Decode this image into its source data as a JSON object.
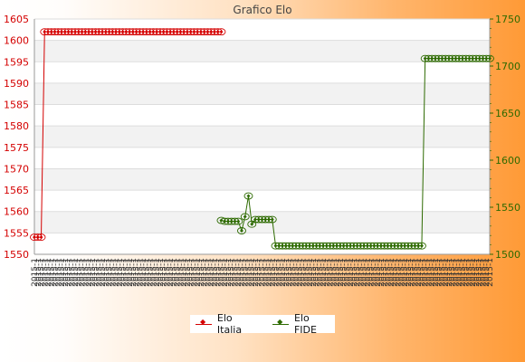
{
  "chart_data": {
    "type": "line",
    "title": "Grafico Elo",
    "left_axis": {
      "ticks": [
        1550,
        1555,
        1560,
        1565,
        1570,
        1575,
        1580,
        1585,
        1590,
        1595,
        1600,
        1605
      ],
      "ylim": [
        1550,
        1605
      ],
      "color": "#d40000"
    },
    "right_axis": {
      "ticks": [
        1500,
        1550,
        1600,
        1650,
        1700,
        1750
      ],
      "ylim": [
        1500,
        1750
      ],
      "color": "#2d6a00"
    },
    "x_label_text": "2015-1",
    "n_points": 80,
    "grid": true,
    "legend_position": "bottom",
    "series": [
      {
        "name": "Elo Italia",
        "axis": "left",
        "color": "#d40000",
        "points": [
          [
            0,
            1554
          ],
          [
            1,
            1554
          ],
          [
            2,
            1554
          ],
          [
            3,
            1602
          ],
          [
            4,
            1602
          ],
          [
            5,
            1602
          ],
          [
            6,
            1602
          ],
          [
            7,
            1602
          ],
          [
            8,
            1602
          ],
          [
            9,
            1602
          ],
          [
            10,
            1602
          ],
          [
            11,
            1602
          ],
          [
            12,
            1602
          ],
          [
            13,
            1602
          ],
          [
            14,
            1602
          ],
          [
            15,
            1602
          ],
          [
            16,
            1602
          ],
          [
            17,
            1602
          ],
          [
            18,
            1602
          ],
          [
            19,
            1602
          ],
          [
            20,
            1602
          ],
          [
            21,
            1602
          ],
          [
            22,
            1602
          ],
          [
            23,
            1602
          ],
          [
            24,
            1602
          ],
          [
            25,
            1602
          ],
          [
            26,
            1602
          ],
          [
            27,
            1602
          ],
          [
            28,
            1602
          ],
          [
            29,
            1602
          ],
          [
            30,
            1602
          ],
          [
            31,
            1602
          ],
          [
            32,
            1602
          ],
          [
            33,
            1602
          ],
          [
            34,
            1602
          ],
          [
            35,
            1602
          ],
          [
            36,
            1602
          ],
          [
            37,
            1602
          ],
          [
            38,
            1602
          ],
          [
            39,
            1602
          ],
          [
            40,
            1602
          ],
          [
            41,
            1602
          ],
          [
            42,
            1602
          ],
          [
            43,
            1602
          ],
          [
            44,
            1602
          ],
          [
            45,
            1602
          ],
          [
            46,
            1602
          ],
          [
            47,
            1602
          ],
          [
            48,
            1602
          ],
          [
            49,
            1602
          ],
          [
            50,
            1602
          ],
          [
            51,
            1602
          ],
          [
            52,
            1602
          ],
          [
            53,
            1602
          ],
          [
            54,
            1602
          ],
          [
            55,
            1602
          ]
        ]
      },
      {
        "name": "Elo FIDE",
        "axis": "right",
        "color": "#2d6a00",
        "points": [
          [
            55,
            1536
          ],
          [
            56,
            1535
          ],
          [
            57,
            1535
          ],
          [
            58,
            1535
          ],
          [
            59,
            1535
          ],
          [
            60,
            1535
          ],
          [
            61,
            1525
          ],
          [
            62,
            1540
          ],
          [
            63,
            1562
          ],
          [
            64,
            1532
          ],
          [
            65,
            1537
          ],
          [
            66,
            1537
          ],
          [
            67,
            1537
          ],
          [
            68,
            1537
          ],
          [
            69,
            1537
          ],
          [
            70,
            1537
          ],
          [
            71,
            1509
          ],
          [
            72,
            1509
          ],
          [
            73,
            1509
          ],
          [
            74,
            1509
          ],
          [
            75,
            1509
          ],
          [
            76,
            1509
          ],
          [
            77,
            1509
          ],
          [
            78,
            1509
          ],
          [
            79,
            1509
          ],
          [
            80,
            1509
          ],
          [
            81,
            1509
          ],
          [
            82,
            1509
          ],
          [
            83,
            1509
          ],
          [
            84,
            1509
          ],
          [
            85,
            1509
          ],
          [
            86,
            1509
          ],
          [
            87,
            1509
          ],
          [
            88,
            1509
          ],
          [
            89,
            1509
          ],
          [
            90,
            1509
          ],
          [
            91,
            1509
          ],
          [
            92,
            1509
          ],
          [
            93,
            1509
          ],
          [
            94,
            1509
          ],
          [
            95,
            1509
          ],
          [
            96,
            1509
          ],
          [
            97,
            1509
          ],
          [
            98,
            1509
          ],
          [
            99,
            1509
          ],
          [
            100,
            1509
          ],
          [
            101,
            1509
          ],
          [
            102,
            1509
          ],
          [
            103,
            1509
          ],
          [
            104,
            1509
          ],
          [
            105,
            1509
          ],
          [
            106,
            1509
          ],
          [
            107,
            1509
          ],
          [
            108,
            1509
          ],
          [
            109,
            1509
          ],
          [
            110,
            1509
          ],
          [
            111,
            1509
          ],
          [
            112,
            1509
          ],
          [
            113,
            1509
          ],
          [
            114,
            1509
          ],
          [
            115,
            1708
          ],
          [
            116,
            1708
          ],
          [
            117,
            1708
          ],
          [
            118,
            1708
          ],
          [
            119,
            1708
          ],
          [
            120,
            1708
          ],
          [
            121,
            1708
          ],
          [
            122,
            1708
          ],
          [
            123,
            1708
          ],
          [
            124,
            1708
          ],
          [
            125,
            1708
          ],
          [
            126,
            1708
          ],
          [
            127,
            1708
          ],
          [
            128,
            1708
          ],
          [
            129,
            1708
          ],
          [
            130,
            1708
          ],
          [
            131,
            1708
          ],
          [
            132,
            1708
          ],
          [
            133,
            1708
          ],
          [
            134,
            1708
          ]
        ]
      }
    ]
  }
}
